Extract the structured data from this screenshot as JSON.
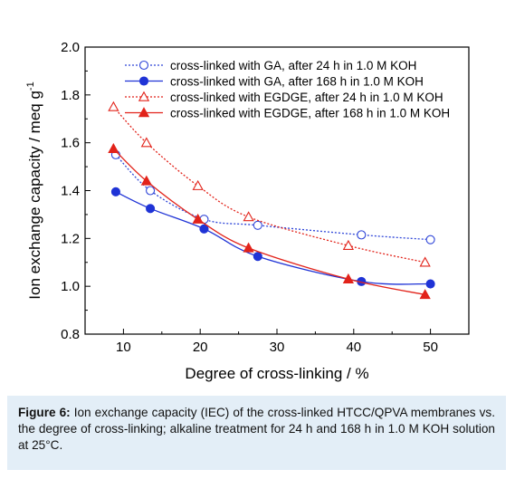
{
  "chart_data": {
    "type": "line",
    "xlabel": "Degree of cross-linking / %",
    "ylabel": "Ion exchange capacity / meq g",
    "ylabel_superscript": "-1",
    "xlim": [
      5,
      55
    ],
    "ylim": [
      0.8,
      2.0
    ],
    "xticks": [
      "10",
      "20",
      "30",
      "40",
      "50"
    ],
    "yticks": [
      "0.8",
      "1.0",
      "1.2",
      "1.4",
      "1.6",
      "1.8",
      "2.0"
    ],
    "grid": false,
    "legend_position": "top-right",
    "series": [
      {
        "name": "cross-linked with GA, after 24 h in 1.0 M KOH",
        "color": "#2e45d8",
        "marker": "circle-open",
        "line": "dotted",
        "x": [
          9.0,
          13.5,
          20.5,
          27.5,
          41.0,
          50.0
        ],
        "y": [
          1.55,
          1.4,
          1.28,
          1.255,
          1.215,
          1.195
        ]
      },
      {
        "name": "cross-linked with GA, after 168 h in 1.0 M KOH",
        "color": "#1f33d6",
        "marker": "circle-filled",
        "line": "solid",
        "x": [
          9.0,
          13.5,
          20.5,
          27.5,
          41.0,
          50.0
        ],
        "y": [
          1.395,
          1.325,
          1.24,
          1.125,
          1.02,
          1.01
        ]
      },
      {
        "name": "cross-linked with EGDGE, after 24 h in 1.0 M KOH",
        "color": "#e2231a",
        "marker": "triangle-open",
        "line": "dotted",
        "x": [
          8.7,
          13.0,
          19.7,
          26.3,
          39.3,
          49.3
        ],
        "y": [
          1.75,
          1.6,
          1.42,
          1.29,
          1.17,
          1.1
        ]
      },
      {
        "name": "cross-linked with EGDGE, after 168 h in 1.0 M KOH",
        "color": "#e2231a",
        "marker": "triangle-filled",
        "line": "solid",
        "x": [
          8.7,
          13.0,
          19.7,
          26.3,
          39.3,
          49.3
        ],
        "y": [
          1.575,
          1.44,
          1.28,
          1.16,
          1.03,
          0.965
        ]
      }
    ]
  },
  "caption": {
    "label": "Figure 6:",
    "text": " Ion exchange capacity (IEC) of the cross-linked HTCC/QPVA membranes vs. the degree of cross-linking; alkaline treatment for 24 h and 168 h in 1.0 M KOH solution at 25°C."
  }
}
